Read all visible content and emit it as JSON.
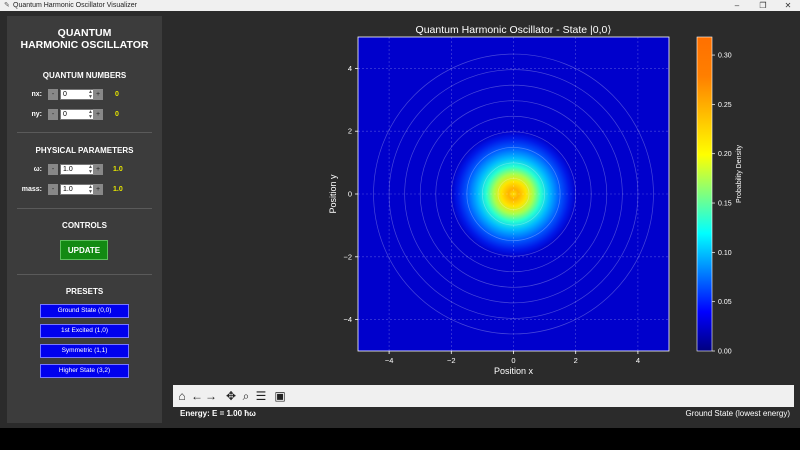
{
  "window": {
    "title": "Quantum Harmonic Oscillator Visualizer",
    "icon": "feather-icon",
    "controls": [
      "minimize-icon",
      "maximize-icon",
      "close-icon"
    ]
  },
  "sidebar": {
    "app_title_line1": "QUANTUM",
    "app_title_line2": "HARMONIC OSCILLATOR",
    "quantum_numbers": {
      "title": "QUANTUM NUMBERS",
      "nx": {
        "label": "nx:",
        "minus": "-",
        "plus": "+",
        "value": "0",
        "display": "0"
      },
      "ny": {
        "label": "ny:",
        "minus": "-",
        "plus": "+",
        "value": "0",
        "display": "0"
      }
    },
    "physical_parameters": {
      "title": "PHYSICAL PARAMETERS",
      "omega": {
        "label": "ω:",
        "minus": "-",
        "plus": "+",
        "value": "1.0",
        "display": "1.0"
      },
      "mass": {
        "label": "mass:",
        "minus": "-",
        "plus": "+",
        "value": "1.0",
        "display": "1.0"
      }
    },
    "controls": {
      "title": "CONTROLS",
      "update_label": "UPDATE"
    },
    "presets": {
      "title": "PRESETS",
      "items": [
        {
          "label": "Ground State (0,0)"
        },
        {
          "label": "1st Excited (1,0)"
        },
        {
          "label": "Symmetric (1,1)"
        },
        {
          "label": "Higher State (3,2)"
        }
      ]
    }
  },
  "colors": {
    "accent_value": "#e6e600",
    "update_button": "#138a13",
    "preset_button": "#0000ee"
  },
  "toolbar": {
    "icons": [
      "home-icon",
      "back-icon",
      "forward-icon",
      "pan-icon",
      "zoom-icon",
      "configure-icon",
      "save-icon"
    ]
  },
  "status": {
    "energy": "Energy: E = 1.00 ħω",
    "state_description": "Ground State (lowest energy)"
  },
  "chart_data": {
    "type": "heatmap",
    "title": "Quantum Harmonic Oscillator - State |0,0⟩",
    "xlabel": "Position x",
    "ylabel": "Position y",
    "xlim": [
      -5,
      5
    ],
    "ylim": [
      -5,
      5
    ],
    "xticks": [
      -4,
      -2,
      0,
      2,
      4
    ],
    "yticks": [
      -4,
      -2,
      0,
      2,
      4
    ],
    "grid": true,
    "colorbar": {
      "label": "Probability Density",
      "range": [
        0,
        0.3183
      ],
      "ticks": [
        "0.00",
        "0.05",
        "0.10",
        "0.15",
        "0.20",
        "0.25",
        "0.30"
      ],
      "tick_values": [
        0,
        0.05,
        0.1,
        0.15,
        0.2,
        0.25,
        0.3
      ]
    },
    "peak_location": [
      0,
      0
    ],
    "peak_value": 0.3183,
    "contour_radii": [
      0.5,
      1.0,
      1.5,
      2.0,
      2.5,
      3.0,
      3.5,
      4.0,
      4.5
    ]
  }
}
